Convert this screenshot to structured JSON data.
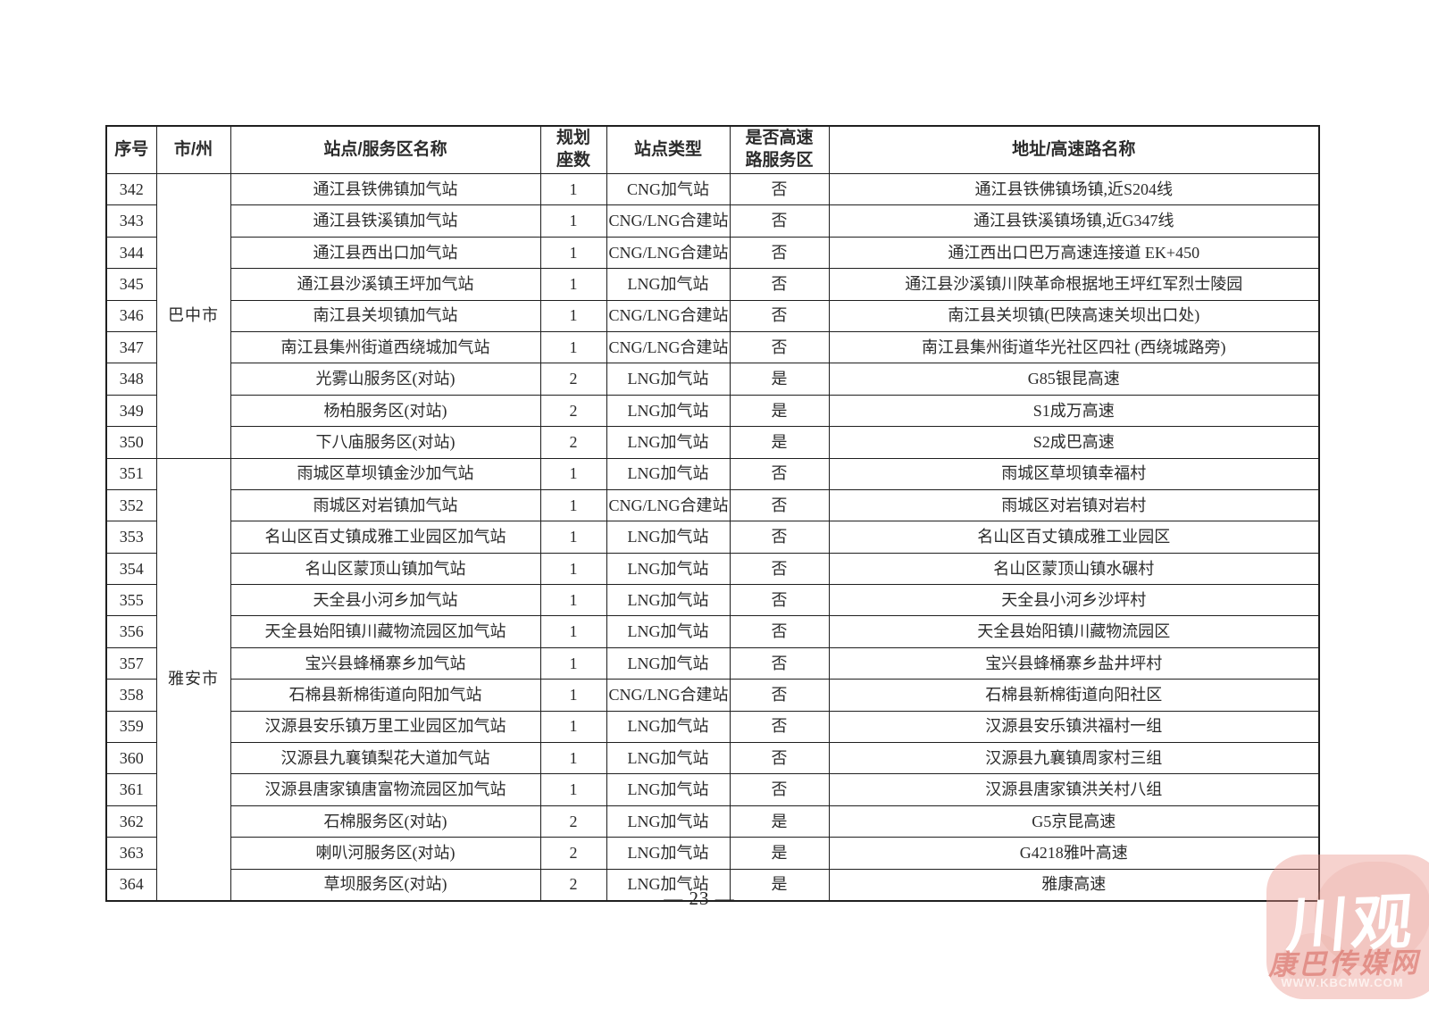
{
  "page": {
    "number_label": "— 23 —"
  },
  "table": {
    "columns": [
      {
        "key": "no",
        "label": "序号"
      },
      {
        "key": "city",
        "label": "市/州"
      },
      {
        "key": "name",
        "label": "站点/服务区名称"
      },
      {
        "key": "seats",
        "label": "规划\n座数"
      },
      {
        "key": "type",
        "label": "站点类型"
      },
      {
        "key": "highway",
        "label": "是否高速\n路服务区"
      },
      {
        "key": "address",
        "label": "地址/高速路名称"
      }
    ],
    "city_groups": [
      {
        "city": "巴中市",
        "start": 342,
        "end": 350
      },
      {
        "city": "雅安市",
        "start": 351,
        "end": 364
      }
    ],
    "rows": [
      {
        "no": 342,
        "name": "通江县铁佛镇加气站",
        "seats": "1",
        "type": "CNG加气站",
        "highway": "否",
        "address": "通江县铁佛镇场镇,近S204线"
      },
      {
        "no": 343,
        "name": "通江县铁溪镇加气站",
        "seats": "1",
        "type": "CNG/LNG合建站",
        "highway": "否",
        "address": "通江县铁溪镇场镇,近G347线"
      },
      {
        "no": 344,
        "name": "通江县西出口加气站",
        "seats": "1",
        "type": "CNG/LNG合建站",
        "highway": "否",
        "address": "通江西出口巴万高速连接道 EK+450"
      },
      {
        "no": 345,
        "name": "通江县沙溪镇王坪加气站",
        "seats": "1",
        "type": "LNG加气站",
        "highway": "否",
        "address": "通江县沙溪镇川陕革命根据地王坪红军烈士陵园"
      },
      {
        "no": 346,
        "name": "南江县关坝镇加气站",
        "seats": "1",
        "type": "CNG/LNG合建站",
        "highway": "否",
        "address": "南江县关坝镇(巴陕高速关坝出口处)"
      },
      {
        "no": 347,
        "name": "南江县集州街道西绕城加气站",
        "seats": "1",
        "type": "CNG/LNG合建站",
        "highway": "否",
        "address": "南江县集州街道华光社区四社 (西绕城路旁)"
      },
      {
        "no": 348,
        "name": "光雾山服务区(对站)",
        "seats": "2",
        "type": "LNG加气站",
        "highway": "是",
        "address": "G85银昆高速"
      },
      {
        "no": 349,
        "name": "杨柏服务区(对站)",
        "seats": "2",
        "type": "LNG加气站",
        "highway": "是",
        "address": "S1成万高速"
      },
      {
        "no": 350,
        "name": "下八庙服务区(对站)",
        "seats": "2",
        "type": "LNG加气站",
        "highway": "是",
        "address": "S2成巴高速"
      },
      {
        "no": 351,
        "name": "雨城区草坝镇金沙加气站",
        "seats": "1",
        "type": "LNG加气站",
        "highway": "否",
        "address": "雨城区草坝镇幸福村"
      },
      {
        "no": 352,
        "name": "雨城区对岩镇加气站",
        "seats": "1",
        "type": "CNG/LNG合建站",
        "highway": "否",
        "address": "雨城区对岩镇对岩村"
      },
      {
        "no": 353,
        "name": "名山区百丈镇成雅工业园区加气站",
        "seats": "1",
        "type": "LNG加气站",
        "highway": "否",
        "address": "名山区百丈镇成雅工业园区"
      },
      {
        "no": 354,
        "name": "名山区蒙顶山镇加气站",
        "seats": "1",
        "type": "LNG加气站",
        "highway": "否",
        "address": "名山区蒙顶山镇水碾村"
      },
      {
        "no": 355,
        "name": "天全县小河乡加气站",
        "seats": "1",
        "type": "LNG加气站",
        "highway": "否",
        "address": "天全县小河乡沙坪村"
      },
      {
        "no": 356,
        "name": "天全县始阳镇川藏物流园区加气站",
        "seats": "1",
        "type": "LNG加气站",
        "highway": "否",
        "address": "天全县始阳镇川藏物流园区"
      },
      {
        "no": 357,
        "name": "宝兴县蜂桶寨乡加气站",
        "seats": "1",
        "type": "LNG加气站",
        "highway": "否",
        "address": "宝兴县蜂桶寨乡盐井坪村"
      },
      {
        "no": 358,
        "name": "石棉县新棉街道向阳加气站",
        "seats": "1",
        "type": "CNG/LNG合建站",
        "highway": "否",
        "address": "石棉县新棉街道向阳社区"
      },
      {
        "no": 359,
        "name": "汉源县安乐镇万里工业园区加气站",
        "seats": "1",
        "type": "LNG加气站",
        "highway": "否",
        "address": "汉源县安乐镇洪福村一组"
      },
      {
        "no": 360,
        "name": "汉源县九襄镇梨花大道加气站",
        "seats": "1",
        "type": "LNG加气站",
        "highway": "否",
        "address": "汉源县九襄镇周家村三组"
      },
      {
        "no": 361,
        "name": "汉源县唐家镇唐富物流园区加气站",
        "seats": "1",
        "type": "LNG加气站",
        "highway": "否",
        "address": "汉源县唐家镇洪关村八组"
      },
      {
        "no": 362,
        "name": "石棉服务区(对站)",
        "seats": "2",
        "type": "LNG加气站",
        "highway": "是",
        "address": "G5京昆高速"
      },
      {
        "no": 363,
        "name": "喇叭河服务区(对站)",
        "seats": "2",
        "type": "LNG加气站",
        "highway": "是",
        "address": "G4218雅叶高速"
      },
      {
        "no": 364,
        "name": "草坝服务区(对站)",
        "seats": "2",
        "type": "LNG加气站",
        "highway": "是",
        "address": "雅康高速"
      }
    ]
  },
  "watermark": {
    "title": "川观",
    "subtitle": "康巴传媒网",
    "url": "WWW.KBCMW.COM"
  },
  "colors": {
    "table_border": "#1f1f1f",
    "text": "#2b2b2b",
    "watermark_badge": "#f2bfb8",
    "watermark_title": "#ffffff",
    "watermark_subtitle": "#d25c52",
    "watermark_url": "#f7ddd9"
  }
}
